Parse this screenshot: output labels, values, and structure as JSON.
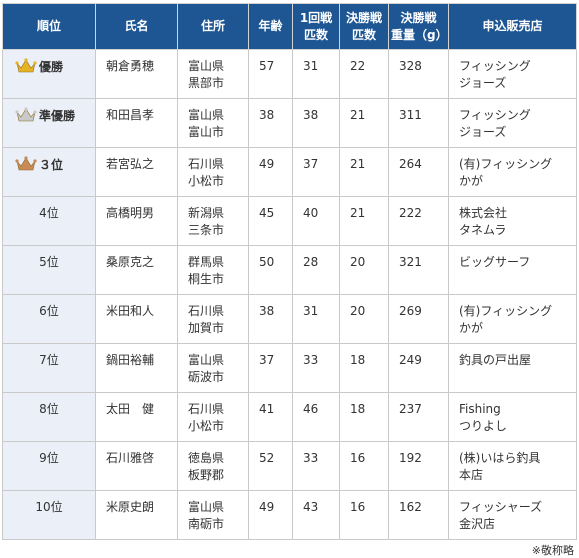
{
  "table": {
    "headers": {
      "rank": "順位",
      "name": "氏名",
      "address": "住所",
      "age": "年齢",
      "round1": "1回戦\n匹数",
      "final_count": "決勝戦\n匹数",
      "final_weight": "決勝戦\n重量（g）",
      "shop": "申込販売店"
    },
    "rows": [
      {
        "rank": "優勝",
        "medal": "gold",
        "name": "朝倉勇穂",
        "address": "富山県\n黒部市",
        "age": "57",
        "round1": "31",
        "final_count": "22",
        "final_weight": "328",
        "shop": "フィッシング\nジョーズ"
      },
      {
        "rank": "準優勝",
        "medal": "silver",
        "name": "和田昌孝",
        "address": "富山県\n富山市",
        "age": "38",
        "round1": "38",
        "final_count": "21",
        "final_weight": "311",
        "shop": "フィッシング\nジョーズ"
      },
      {
        "rank": "３位",
        "medal": "bronze",
        "name": "若宮弘之",
        "address": "石川県\n小松市",
        "age": "49",
        "round1": "37",
        "final_count": "21",
        "final_weight": "264",
        "shop": "(有)フィッシング\nかが"
      },
      {
        "rank": "4位",
        "medal": "",
        "name": "高橋明男",
        "address": "新潟県\n三条市",
        "age": "45",
        "round1": "40",
        "final_count": "21",
        "final_weight": "222",
        "shop": "株式会社\nタネムラ"
      },
      {
        "rank": "5位",
        "medal": "",
        "name": "桑原克之",
        "address": "群馬県\n桐生市",
        "age": "50",
        "round1": "28",
        "final_count": "20",
        "final_weight": "321",
        "shop": "ビッグサーフ"
      },
      {
        "rank": "6位",
        "medal": "",
        "name": "米田和人",
        "address": "石川県\n加賀市",
        "age": "38",
        "round1": "31",
        "final_count": "20",
        "final_weight": "269",
        "shop": "(有)フィッシング\nかが"
      },
      {
        "rank": "7位",
        "medal": "",
        "name": "鍋田裕輔",
        "address": "富山県\n砺波市",
        "age": "37",
        "round1": "33",
        "final_count": "18",
        "final_weight": "249",
        "shop": "釣具の戸出屋"
      },
      {
        "rank": "8位",
        "medal": "",
        "name": "太田　健",
        "address": "石川県\n小松市",
        "age": "41",
        "round1": "46",
        "final_count": "18",
        "final_weight": "237",
        "shop": "Fishing\nつりよし"
      },
      {
        "rank": "9位",
        "medal": "",
        "name": "石川雅啓",
        "address": "徳島県\n板野郡",
        "age": "52",
        "round1": "33",
        "final_count": "16",
        "final_weight": "192",
        "shop": "(株)いはら釣具\n本店"
      },
      {
        "rank": "10位",
        "medal": "",
        "name": "米原史朗",
        "address": "富山県\n南砺市",
        "age": "49",
        "round1": "43",
        "final_count": "16",
        "final_weight": "162",
        "shop": "フィッシャーズ\n金沢店"
      }
    ],
    "medal_colors": {
      "gold": "#e6b422",
      "silver": "#c9c9c9",
      "bronze": "#c98a5a"
    },
    "header_color": "#1d5693",
    "rank_cell_color": "#ebeff7"
  },
  "footnote": "※敬称略"
}
